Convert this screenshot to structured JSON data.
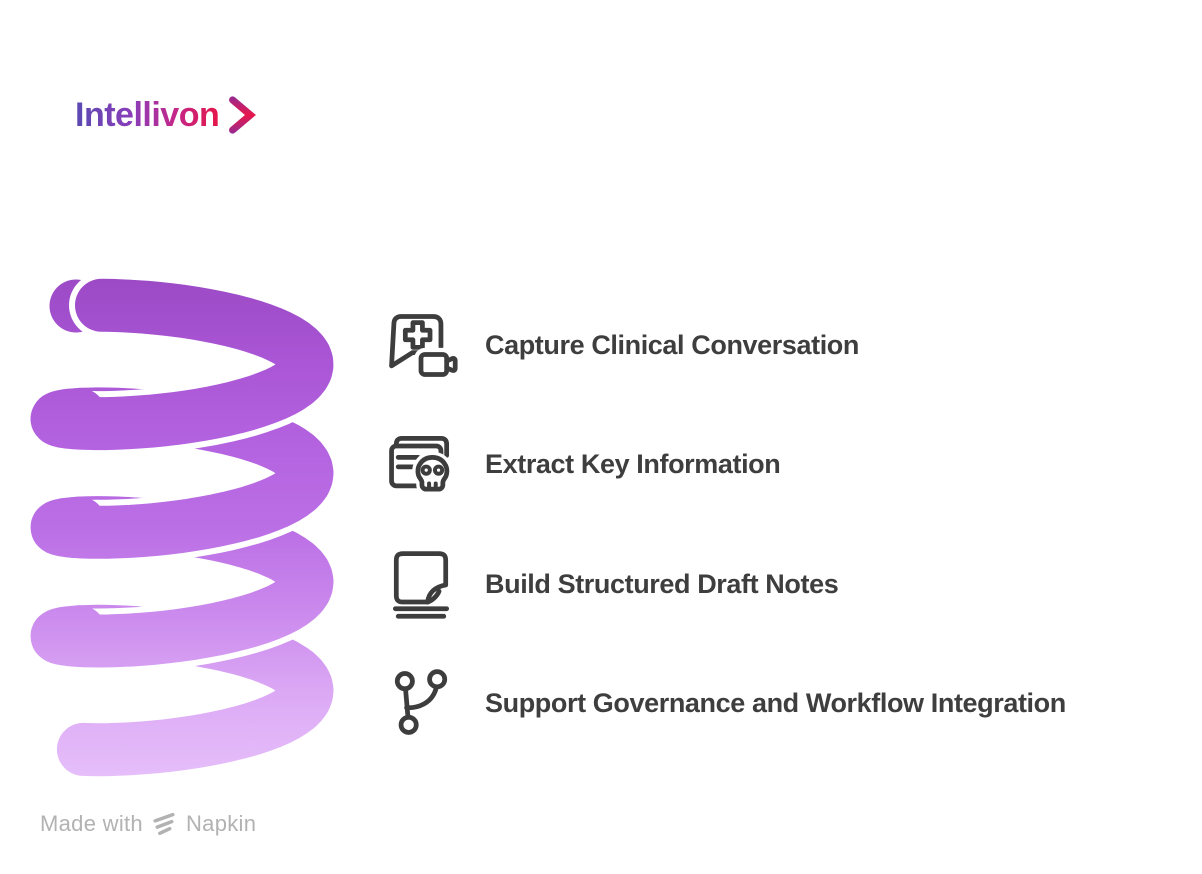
{
  "brand": {
    "name": "Intellivon",
    "chevron_icon": "chevron-right-icon"
  },
  "features": [
    {
      "icon": "medical-chat-video-icon",
      "label": "Capture Clinical Conversation"
    },
    {
      "icon": "cards-skull-icon",
      "label": "Extract Key Information"
    },
    {
      "icon": "folded-note-icon",
      "label": "Build Structured Draft Notes"
    },
    {
      "icon": "git-branch-icon",
      "label": "Support Governance and Workflow Integration"
    }
  ],
  "footer": {
    "made_with": "Made with",
    "brand": "Napkin",
    "icon": "napkin-logo-icon"
  },
  "spiral": {
    "type": "coil",
    "loops": 4
  },
  "colors": {
    "background": "#ffffff",
    "text": "#3e3e3e",
    "icon": "#3d3d3d",
    "muted": "#b2b2b2",
    "logo_gradient": [
      "#5a4ab2",
      "#8a3db9",
      "#c1288c",
      "#e5164a"
    ],
    "chevron_gradient": [
      "#8b2d9a",
      "#e8164b",
      "#8b2d9a"
    ],
    "spiral_gradient": [
      "#9c4ac6",
      "#aa56d6",
      "#b463e0",
      "#bb6fe5",
      "#cb8aed",
      "#dcaaf5",
      "#e6bffa"
    ]
  }
}
